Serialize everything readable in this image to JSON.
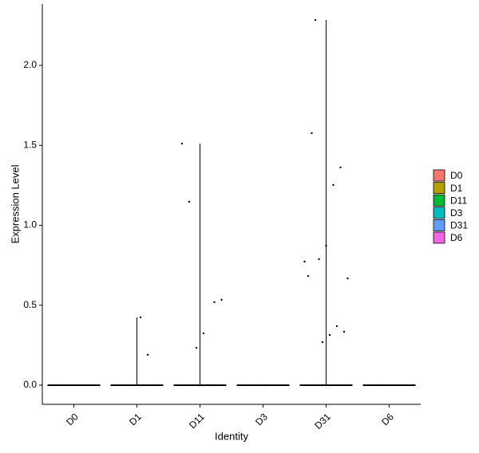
{
  "chart_data": {
    "type": "violin",
    "x_label": "Identity",
    "y_label": "Expression Level",
    "categories": [
      "D0",
      "D1",
      "D11",
      "D3",
      "D31",
      "D6"
    ],
    "series": [
      {
        "name": "D0",
        "color": "#F8766D",
        "values": [
          0
        ]
      },
      {
        "name": "D1",
        "color": "#B79F00",
        "values": [
          0,
          0.19,
          0.424
        ]
      },
      {
        "name": "D11",
        "color": "#00BA38",
        "values": [
          0,
          0.324,
          0.234,
          1.147,
          1.511,
          0.534,
          0.519
        ]
      },
      {
        "name": "D3",
        "color": "#00BFC4",
        "values": [
          0
        ]
      },
      {
        "name": "D31",
        "color": "#619CFF",
        "values": [
          0,
          2.284,
          0.683,
          0.668,
          1.362,
          1.252,
          0.873,
          0.788,
          1.576,
          0.773,
          0.334,
          0.369,
          0.314,
          0.269
        ]
      },
      {
        "name": "D6",
        "color": "#F564E3",
        "values": [
          0
        ]
      }
    ],
    "ylim": [
      -0.12,
      2.384
    ],
    "yticks": [
      {
        "value": 0,
        "label": "0.0"
      },
      {
        "value": 0.5,
        "label": "0.5"
      },
      {
        "value": 1,
        "label": "1.0"
      },
      {
        "value": 1.5,
        "label": "1.5"
      },
      {
        "value": 2,
        "label": "2.0"
      }
    ],
    "legend_position": "right"
  }
}
